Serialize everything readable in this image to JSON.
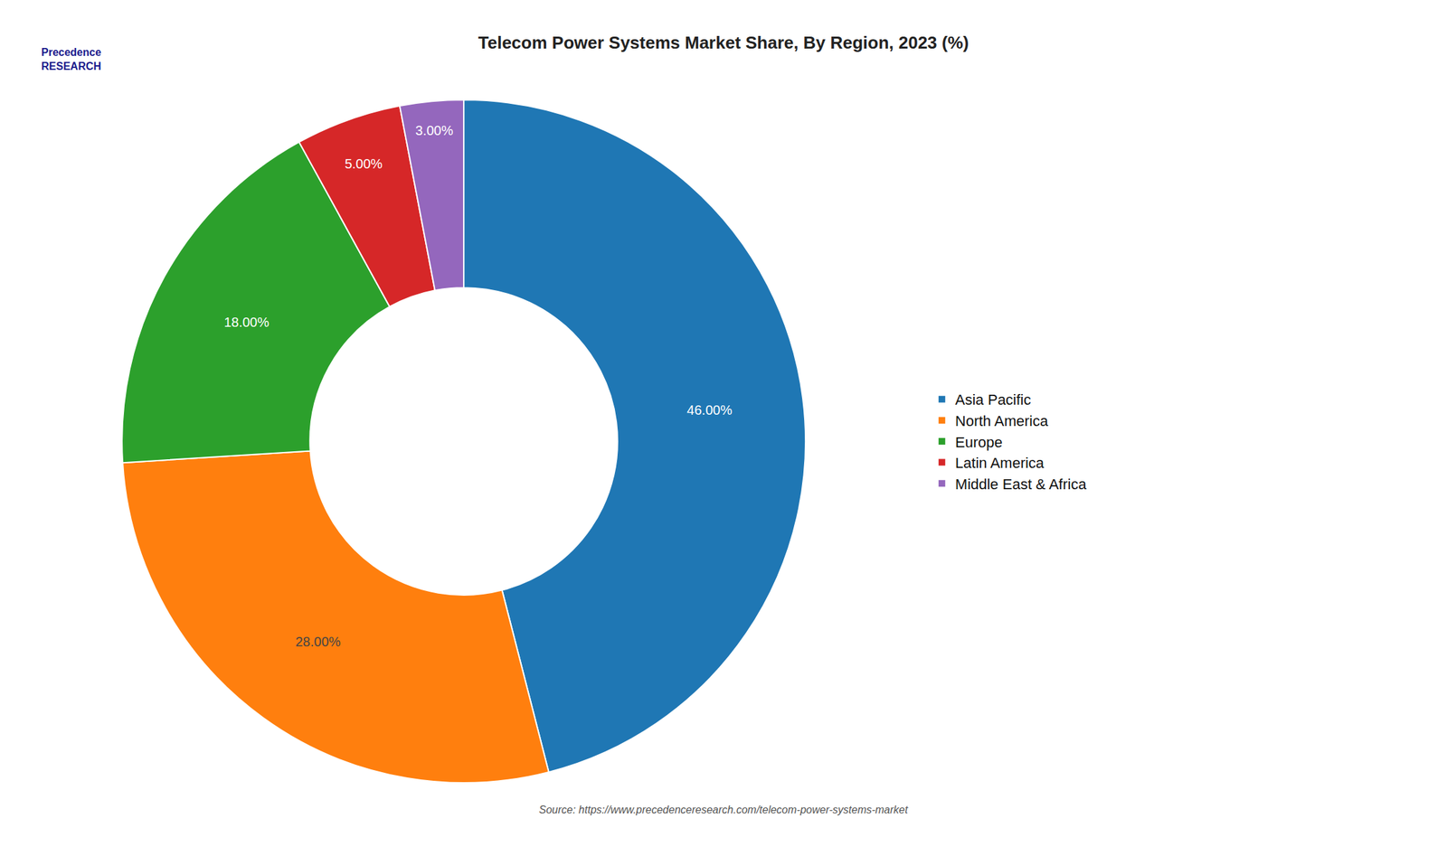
{
  "chart_data": {
    "type": "pie",
    "title": "Telecom Power Systems Market Share, By Region, 2023 (%)",
    "categories": [
      "Asia Pacific",
      "North America",
      "Europe",
      "Latin America",
      "Middle East & Africa"
    ],
    "values": [
      46.0,
      28.0,
      18.0,
      5.0,
      3.0
    ],
    "value_labels": [
      "46.00%",
      "28.00%",
      "18.00%",
      "5.00%",
      "3.00%"
    ],
    "data_labels": true,
    "legend": "right",
    "annotations": [
      "Precedence\nRESEARCH",
      "Source: https://www.precedenceresearch.com/telecom-power-systems-market"
    ]
  }
}
